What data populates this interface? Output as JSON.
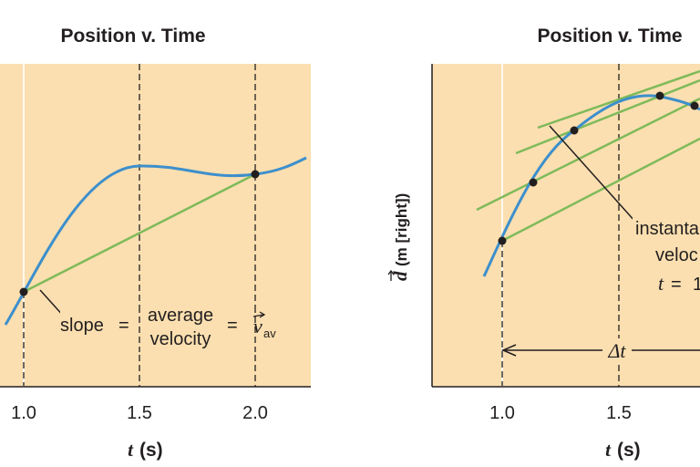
{
  "chart_data": [
    {
      "type": "line",
      "title": "Position v. Time",
      "xlabel": "t",
      "xunit": "(s)",
      "x_ticks": [
        "1.0",
        "1.5",
        "2.0"
      ],
      "xlim": [
        0.9,
        2.22
      ],
      "ylabel": "",
      "grid": "vertical lines at t = 1.0 (solid), 1.5 and 2.0 (dashed)",
      "series": [
        {
          "role": "position curve",
          "color": "#3d8fcc",
          "x": [
            0.92,
            1.0,
            1.1,
            1.2,
            1.3,
            1.4,
            1.5,
            1.6,
            1.7,
            1.8,
            1.9,
            2.0,
            2.1,
            2.22
          ],
          "y": [
            0.4,
            0.65,
            1.2,
            1.85,
            2.4,
            2.85,
            3.05,
            3.12,
            3.06,
            2.95,
            2.9,
            2.92,
            3.0,
            3.18
          ]
        },
        {
          "role": "secant line",
          "color": "#7fba5a",
          "x": [
            1.0,
            2.0
          ],
          "y": [
            0.65,
            2.92
          ]
        }
      ],
      "points": [
        {
          "x": 1.0,
          "y": 0.65
        },
        {
          "x": 2.0,
          "y": 2.92
        }
      ],
      "annotation": {
        "slope_label": "slope",
        "equals": "=",
        "line1": "average",
        "line2": "velocity",
        "symbol": "v",
        "subscript": "av"
      }
    },
    {
      "type": "line",
      "title": "Position v. Time",
      "xlabel": "t",
      "xunit": "(s)",
      "x_ticks": [
        "1.0",
        "1.5"
      ],
      "xlim": [
        0.9,
        1.9
      ],
      "ylabel": "d",
      "yunit": "(m [right])",
      "grid": "vertical lines at t = 1.0 (solid), 1.5 (dashed)",
      "series": [
        {
          "role": "position curve",
          "color": "#3d8fcc",
          "x": [
            0.93,
            1.0,
            1.07,
            1.14,
            1.21,
            1.32,
            1.45,
            1.58,
            1.68,
            1.8,
            1.9
          ],
          "y": [
            0.9,
            1.4,
            1.95,
            2.4,
            2.85,
            3.45,
            3.9,
            4.15,
            4.2,
            4.1,
            3.95
          ]
        },
        {
          "role": "secant lines",
          "color": "#7fba5a",
          "lines": [
            {
              "x": [
                1.0,
                1.9
              ],
              "y": [
                1.4,
                3.3
              ]
            },
            {
              "x": [
                0.9,
                1.9
              ],
              "y": [
                1.7,
                3.95
              ]
            },
            {
              "x": [
                1.06,
                1.9
              ],
              "y": [
                2.6,
                4.05
              ]
            },
            {
              "x": [
                1.15,
                1.9
              ],
              "y": [
                3.4,
                4.4
              ]
            }
          ]
        }
      ],
      "points": [
        {
          "x": 1.0,
          "y": 1.4
        },
        {
          "x": 1.14,
          "y": 2.4
        },
        {
          "x": 1.32,
          "y": 3.45
        },
        {
          "x": 1.68,
          "y": 4.2
        },
        {
          "x": 1.84,
          "y": 4.05
        }
      ],
      "annotation": {
        "line1": "instanta",
        "line2": "veloc",
        "line3_var": "t",
        "line3_eq": "=",
        "line3_val": "1",
        "delta": "Δt"
      }
    }
  ]
}
